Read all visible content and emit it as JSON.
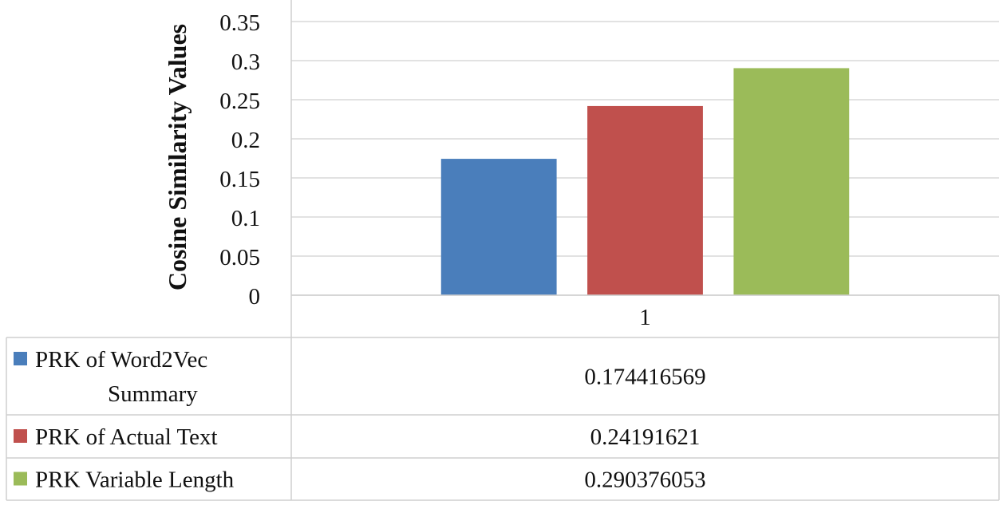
{
  "chart_data": {
    "type": "bar",
    "title": "",
    "xlabel": "",
    "ylabel": "Cosine Similarity Values",
    "ylim": [
      0,
      0.35
    ],
    "ytick_step": 0.05,
    "yticks": [
      "0",
      "0.05",
      "0.1",
      "0.15",
      "0.2",
      "0.25",
      "0.3",
      "0.35"
    ],
    "categories": [
      "1"
    ],
    "grid": true,
    "legend_position": "data-table-below",
    "series": [
      {
        "name": "PRK of Word2Vec Summary",
        "values": [
          0.174416569
        ],
        "value_label": "0.174416569",
        "color": "#4a7ebb"
      },
      {
        "name": "PRK of Actual Text",
        "values": [
          0.24191621
        ],
        "value_label": "0.24191621",
        "color": "#c0504d"
      },
      {
        "name": "PRK Variable Length",
        "values": [
          0.290376053
        ],
        "value_label": "0.290376053",
        "color": "#9bbb59"
      }
    ]
  }
}
